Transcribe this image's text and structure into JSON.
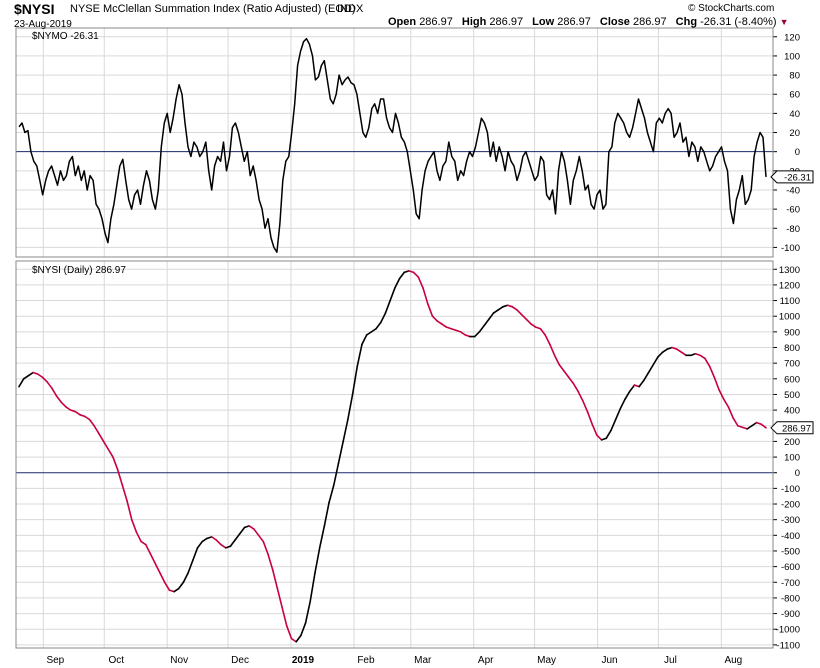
{
  "header": {
    "symbol": "$NYSI",
    "title": "NYSE McClellan Summation Index (Ratio Adjusted) (EOD)",
    "exchange": "INDX",
    "date": "23-Aug-2019",
    "open_label": "Open",
    "open_value": "286.97",
    "high_label": "High",
    "high_value": "286.97",
    "low_label": "Low",
    "low_value": "286.97",
    "close_label": "Close",
    "close_value": "286.97",
    "chg_label": "Chg",
    "chg_value": "-26.31 (-8.40%)",
    "copyright": "© StockCharts.com"
  },
  "colors": {
    "line": "#000000",
    "down": "#c8003c",
    "zero_line": "#1a2a6c",
    "grid": "#d9d9d9",
    "badge_fill": "#ffffff"
  },
  "chart_data": [
    {
      "type": "line",
      "name": "$NYMO",
      "label": "$NYMO -26.31",
      "last_value": "-26.31",
      "ylim": [
        -110,
        125
      ],
      "yticks": [
        120,
        100,
        80,
        60,
        40,
        20,
        0,
        -20,
        -40,
        -60,
        -80,
        -100
      ],
      "values": [
        26,
        30,
        20,
        22,
        0,
        -10,
        -15,
        -30,
        -45,
        -30,
        -20,
        -15,
        -25,
        -35,
        -20,
        -30,
        -25,
        -10,
        -5,
        -25,
        -15,
        -30,
        -20,
        -40,
        -25,
        -30,
        -55,
        -60,
        -70,
        -85,
        -95,
        -70,
        -55,
        -35,
        -15,
        -8,
        -30,
        -50,
        -60,
        -45,
        -40,
        -55,
        -35,
        -20,
        -30,
        -50,
        -60,
        -40,
        5,
        30,
        40,
        20,
        35,
        55,
        70,
        60,
        30,
        5,
        -5,
        10,
        5,
        -5,
        0,
        10,
        -20,
        -40,
        -15,
        -5,
        -10,
        10,
        -20,
        -5,
        25,
        30,
        20,
        5,
        -10,
        0,
        -25,
        -15,
        -30,
        -50,
        -60,
        -80,
        -70,
        -90,
        -100,
        -105,
        -75,
        -30,
        -10,
        -5,
        20,
        50,
        90,
        105,
        115,
        118,
        112,
        100,
        75,
        78,
        90,
        95,
        75,
        55,
        50,
        60,
        80,
        70,
        75,
        78,
        72,
        70,
        60,
        40,
        20,
        15,
        25,
        45,
        50,
        40,
        55,
        55,
        35,
        25,
        20,
        40,
        30,
        15,
        10,
        0,
        -20,
        -40,
        -65,
        -70,
        -40,
        -20,
        -10,
        -5,
        0,
        -20,
        -30,
        -15,
        -10,
        10,
        -5,
        -10,
        -30,
        -20,
        -25,
        -10,
        0,
        -5,
        5,
        20,
        35,
        30,
        20,
        -5,
        10,
        -10,
        5,
        -5,
        -20,
        0,
        -10,
        -15,
        -30,
        -20,
        -5,
        0,
        -10,
        -20,
        -30,
        -25,
        -5,
        -10,
        -45,
        -50,
        -40,
        -65,
        -20,
        0,
        -10,
        -30,
        -55,
        -30,
        -20,
        -5,
        -20,
        -40,
        -35,
        -55,
        -60,
        -45,
        -40,
        -60,
        -55,
        0,
        5,
        30,
        40,
        35,
        30,
        20,
        15,
        25,
        40,
        55,
        45,
        35,
        20,
        10,
        0,
        30,
        35,
        30,
        40,
        45,
        40,
        15,
        20,
        30,
        10,
        15,
        -5,
        10,
        5,
        -10,
        5,
        0,
        -10,
        -20,
        -15,
        -5,
        0,
        5,
        -10,
        -20,
        -60,
        -75,
        -50,
        -40,
        -25,
        -55,
        -50,
        -40,
        -5,
        10,
        20,
        15,
        -26.31
      ],
      "date_range": [
        "2018-08-20",
        "2019-08-23"
      ]
    },
    {
      "type": "line",
      "name": "$NYSI (Daily)",
      "label": "$NYSI (Daily) 286.97",
      "last_value": "286.97",
      "ylim": [
        -1120,
        1340
      ],
      "yticks": [
        1300,
        1200,
        1100,
        1000,
        900,
        800,
        700,
        600,
        500,
        400,
        300,
        200,
        100,
        0,
        -100,
        -200,
        -300,
        -400,
        -500,
        -600,
        -700,
        -800,
        -900,
        -1000,
        -1100
      ],
      "values": [
        550,
        600,
        620,
        640,
        630,
        610,
        580,
        540,
        490,
        450,
        420,
        400,
        390,
        370,
        360,
        340,
        300,
        250,
        200,
        150,
        100,
        20,
        -80,
        -180,
        -300,
        -380,
        -440,
        -460,
        -520,
        -580,
        -640,
        -700,
        -750,
        -760,
        -740,
        -700,
        -640,
        -560,
        -480,
        -440,
        -420,
        -410,
        -430,
        -460,
        -480,
        -470,
        -430,
        -390,
        -350,
        -340,
        -360,
        -400,
        -440,
        -520,
        -620,
        -740,
        -860,
        -980,
        -1060,
        -1080,
        -1040,
        -960,
        -820,
        -640,
        -480,
        -340,
        -190,
        -80,
        60,
        200,
        340,
        500,
        680,
        820,
        880,
        900,
        920,
        960,
        1020,
        1100,
        1180,
        1240,
        1280,
        1290,
        1280,
        1250,
        1180,
        1080,
        1000,
        970,
        950,
        930,
        920,
        910,
        900,
        880,
        870,
        870,
        900,
        940,
        980,
        1020,
        1040,
        1060,
        1070,
        1060,
        1040,
        1010,
        980,
        950,
        930,
        920,
        880,
        820,
        750,
        690,
        650,
        610,
        570,
        520,
        460,
        390,
        310,
        240,
        210,
        220,
        270,
        340,
        410,
        470,
        520,
        560,
        550,
        590,
        640,
        690,
        740,
        770,
        790,
        800,
        790,
        770,
        750,
        750,
        760,
        750,
        730,
        680,
        610,
        530,
        470,
        420,
        350,
        300,
        290,
        280,
        300,
        320,
        310,
        286.97
      ],
      "date_range": [
        "2018-08-20",
        "2019-08-23"
      ]
    }
  ],
  "x_axis": {
    "tick_labels": [
      "Sep",
      "Oct",
      "Nov",
      "Dec",
      "2019",
      "Feb",
      "Mar",
      "Apr",
      "May",
      "Jun",
      "Jul",
      "Aug"
    ],
    "tick_dates": [
      "2018-09-01",
      "2018-10-01",
      "2018-11-01",
      "2018-12-01",
      "2019-01-01",
      "2019-02-01",
      "2019-03-01",
      "2019-04-01",
      "2019-05-01",
      "2019-06-01",
      "2019-07-01",
      "2019-08-01"
    ]
  }
}
